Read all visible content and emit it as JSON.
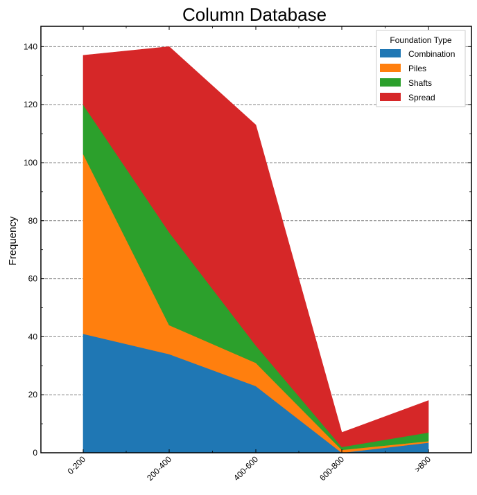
{
  "chart_data": {
    "type": "area",
    "stacked": true,
    "title": "Column Database",
    "xlabel": "",
    "ylabel": "Frequency",
    "categories": [
      "0-200",
      "200-400",
      "400-600",
      "600-800",
      ">800"
    ],
    "ylim": [
      0,
      147
    ],
    "yticks": [
      0,
      20,
      40,
      60,
      80,
      100,
      120,
      140
    ],
    "grid": "horizontal-dashed",
    "legend": {
      "title": "Foundation Type",
      "placement": "top-right"
    },
    "series": [
      {
        "name": "Combination",
        "color": "#1f77b4",
        "values": [
          41,
          34,
          23,
          0,
          3.5
        ]
      },
      {
        "name": "Piles",
        "color": "#ff7f0e",
        "values": [
          62,
          10,
          8,
          1,
          0.5
        ]
      },
      {
        "name": "Shafts",
        "color": "#2ca02c",
        "values": [
          17,
          32,
          6,
          1,
          3
        ]
      },
      {
        "name": "Spread",
        "color": "#d62728",
        "values": [
          17,
          64,
          76,
          5,
          11
        ]
      }
    ]
  }
}
